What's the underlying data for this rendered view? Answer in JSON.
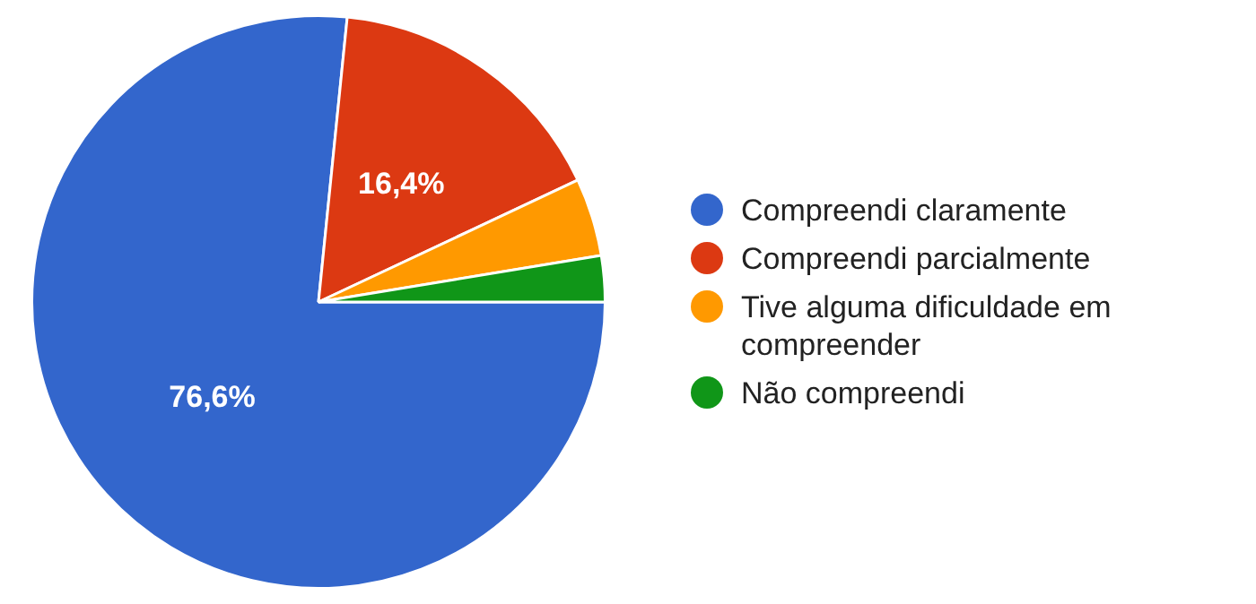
{
  "chart_data": {
    "type": "pie",
    "categories": [
      "Compreendi claramente",
      "Compreendi parcialmente",
      "Tive alguma dificuldade em compreender",
      "Não compreendi"
    ],
    "values": [
      76.6,
      16.4,
      4.4,
      2.6
    ],
    "colors": [
      "#3366cc",
      "#dc3912",
      "#ff9900",
      "#109618"
    ],
    "value_labels": [
      "76,6%",
      "16,4%",
      null,
      null
    ],
    "legend": "right"
  }
}
